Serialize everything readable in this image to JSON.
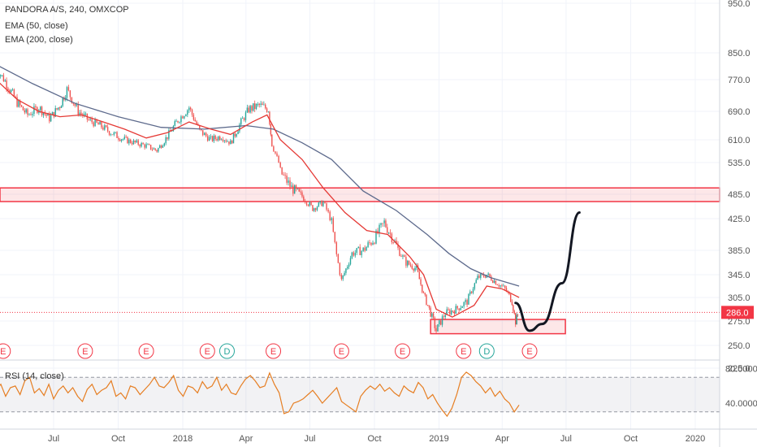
{
  "chart_data": {
    "type": "candlestick",
    "title": "PANDORA A/S, 240, OMXCOP",
    "indicators": [
      {
        "name": "EMA (50, close)",
        "color": "#e53935"
      },
      {
        "name": "EMA (200, close)",
        "color": "#5d6a8c"
      }
    ],
    "y_ticks": [
      "950.0",
      "850.0",
      "770.0",
      "690.0",
      "610.0",
      "535.0",
      "485.0",
      "425.0",
      "385.0",
      "345.0",
      "305.0",
      "275.0",
      "250.0",
      "225.0"
    ],
    "y_tick_values": [
      950,
      850,
      770,
      690,
      610,
      535,
      485,
      425,
      385,
      345,
      305,
      275,
      250,
      225
    ],
    "x_ticks": [
      "Jul",
      "Oct",
      "2018",
      "Apr",
      "Jul",
      "Oct",
      "2019",
      "Apr",
      "Jul",
      "Oct",
      "2020"
    ],
    "x_tick_dates": [
      "2017-07-01",
      "2017-10-01",
      "2018-01-01",
      "2018-04-01",
      "2018-07-01",
      "2018-10-01",
      "2019-01-01",
      "2019-04-01",
      "2019-07-01",
      "2019-10-01",
      "2020-01-01"
    ],
    "last_price": "286.0",
    "last_price_color": "#f23645",
    "up_color": "#26a69a",
    "down_color": "#ef5350",
    "price_path": [
      [
        "2017-04-10",
        805
      ],
      [
        "2017-04-25",
        760
      ],
      [
        "2017-05-10",
        712
      ],
      [
        "2017-05-25",
        680
      ],
      [
        "2017-06-10",
        700
      ],
      [
        "2017-06-25",
        670
      ],
      [
        "2017-07-10",
        705
      ],
      [
        "2017-07-20",
        745
      ],
      [
        "2017-08-05",
        690
      ],
      [
        "2017-08-20",
        665
      ],
      [
        "2017-09-05",
        650
      ],
      [
        "2017-09-25",
        625
      ],
      [
        "2017-10-10",
        610
      ],
      [
        "2017-10-25",
        600
      ],
      [
        "2017-11-10",
        590
      ],
      [
        "2017-11-25",
        575
      ],
      [
        "2017-12-10",
        620
      ],
      [
        "2017-12-25",
        665
      ],
      [
        "2018-01-10",
        700
      ],
      [
        "2018-01-25",
        635
      ],
      [
        "2018-02-10",
        610
      ],
      [
        "2018-02-25",
        620
      ],
      [
        "2018-03-10",
        600
      ],
      [
        "2018-03-25",
        660
      ],
      [
        "2018-04-05",
        695
      ],
      [
        "2018-04-20",
        705
      ],
      [
        "2018-05-03",
        695
      ],
      [
        "2018-05-08",
        595
      ],
      [
        "2018-05-20",
        520
      ],
      [
        "2018-06-05",
        495
      ],
      [
        "2018-06-20",
        480
      ],
      [
        "2018-07-05",
        450
      ],
      [
        "2018-07-20",
        465
      ],
      [
        "2018-08-01",
        420
      ],
      [
        "2018-08-15",
        335
      ],
      [
        "2018-08-30",
        380
      ],
      [
        "2018-09-15",
        385
      ],
      [
        "2018-10-01",
        400
      ],
      [
        "2018-10-15",
        420
      ],
      [
        "2018-10-30",
        395
      ],
      [
        "2018-11-15",
        365
      ],
      [
        "2018-11-30",
        355
      ],
      [
        "2018-12-10",
        310
      ],
      [
        "2018-12-20",
        285
      ],
      [
        "2018-12-28",
        265
      ],
      [
        "2019-01-10",
        285
      ],
      [
        "2019-01-25",
        290
      ],
      [
        "2019-02-10",
        300
      ],
      [
        "2019-02-25",
        340
      ],
      [
        "2019-03-10",
        345
      ],
      [
        "2019-03-25",
        330
      ],
      [
        "2019-04-05",
        320
      ],
      [
        "2019-04-15",
        300
      ],
      [
        "2019-04-20",
        275
      ],
      [
        "2019-04-25",
        286
      ]
    ],
    "ema50": [
      [
        "2017-04-10",
        770
      ],
      [
        "2017-05-10",
        720
      ],
      [
        "2017-06-10",
        690
      ],
      [
        "2017-07-10",
        675
      ],
      [
        "2017-08-10",
        680
      ],
      [
        "2017-09-10",
        660
      ],
      [
        "2017-10-10",
        640
      ],
      [
        "2017-11-10",
        615
      ],
      [
        "2017-12-10",
        630
      ],
      [
        "2018-01-10",
        660
      ],
      [
        "2018-02-10",
        640
      ],
      [
        "2018-03-10",
        625
      ],
      [
        "2018-04-10",
        660
      ],
      [
        "2018-05-01",
        680
      ],
      [
        "2018-05-20",
        610
      ],
      [
        "2018-06-20",
        545
      ],
      [
        "2018-07-20",
        495
      ],
      [
        "2018-08-20",
        440
      ],
      [
        "2018-09-20",
        410
      ],
      [
        "2018-10-20",
        405
      ],
      [
        "2018-11-20",
        375
      ],
      [
        "2018-12-10",
        345
      ],
      [
        "2018-12-28",
        290
      ],
      [
        "2019-01-20",
        280
      ],
      [
        "2019-02-20",
        295
      ],
      [
        "2019-03-10",
        325
      ],
      [
        "2019-04-01",
        320
      ],
      [
        "2019-04-25",
        305
      ]
    ],
    "ema200": [
      [
        "2017-04-10",
        815
      ],
      [
        "2017-06-01",
        760
      ],
      [
        "2017-08-01",
        710
      ],
      [
        "2017-10-01",
        675
      ],
      [
        "2017-12-01",
        645
      ],
      [
        "2018-02-01",
        640
      ],
      [
        "2018-04-01",
        650
      ],
      [
        "2018-05-10",
        640
      ],
      [
        "2018-06-20",
        600
      ],
      [
        "2018-08-01",
        545
      ],
      [
        "2018-09-15",
        490
      ],
      [
        "2018-11-01",
        445
      ],
      [
        "2018-12-15",
        405
      ],
      [
        "2019-01-15",
        380
      ],
      [
        "2019-02-15",
        355
      ],
      [
        "2019-03-15",
        340
      ],
      [
        "2019-04-25",
        325
      ]
    ],
    "resistance_zone": {
      "from": 467,
      "to": 495
    },
    "support_zone": {
      "from": 262,
      "to": 277,
      "start": "2018-12-20",
      "end": "2019-06-30"
    },
    "projection_curve": [
      [
        "2019-04-20",
        298
      ],
      [
        "2019-05-10",
        265
      ],
      [
        "2019-05-28",
        272
      ],
      [
        "2019-06-25",
        330
      ],
      [
        "2019-07-20",
        440
      ]
    ],
    "events": [
      {
        "date": "2017-04-20",
        "label": "E",
        "kind": "earnings"
      },
      {
        "date": "2017-08-15",
        "label": "E",
        "kind": "earnings"
      },
      {
        "date": "2017-11-10",
        "label": "E",
        "kind": "earnings"
      },
      {
        "date": "2018-02-05",
        "label": "E",
        "kind": "earnings"
      },
      {
        "date": "2018-03-05",
        "label": "D",
        "kind": "dividend"
      },
      {
        "date": "2018-05-10",
        "label": "E",
        "kind": "earnings"
      },
      {
        "date": "2018-08-15",
        "label": "E",
        "kind": "earnings"
      },
      {
        "date": "2018-11-10",
        "label": "E",
        "kind": "earnings"
      },
      {
        "date": "2019-02-05",
        "label": "E",
        "kind": "earnings"
      },
      {
        "date": "2019-03-10",
        "label": "D",
        "kind": "dividend"
      },
      {
        "date": "2019-05-10",
        "label": "E",
        "kind": "earnings"
      }
    ],
    "rsi": {
      "label": "RSI (14, close)",
      "color": "#e67e22",
      "ticks": [
        "80.0000",
        "40.0000"
      ],
      "tick_values": [
        80,
        40
      ],
      "band": [
        30,
        70
      ],
      "values": [
        55,
        62,
        48,
        58,
        60,
        50,
        66,
        70,
        52,
        57,
        49,
        62,
        45,
        55,
        60,
        52,
        58,
        48,
        42,
        56,
        62,
        50,
        55,
        58,
        66,
        48,
        52,
        45,
        60,
        58,
        50,
        56,
        62,
        70,
        60,
        58,
        64,
        72,
        55,
        48,
        60,
        58,
        52,
        65,
        57,
        60,
        70,
        55,
        62,
        52,
        50,
        60,
        68,
        72,
        66,
        58,
        60,
        75,
        62,
        52,
        28,
        30,
        40,
        42,
        45,
        50,
        55,
        48,
        40,
        46,
        52,
        58,
        42,
        38,
        34,
        30,
        48,
        55,
        60,
        56,
        62,
        54,
        58,
        52,
        48,
        60,
        55,
        52,
        64,
        58,
        45,
        50,
        40,
        32,
        25,
        34,
        50,
        70,
        76,
        72,
        65,
        60,
        52,
        58,
        48,
        54,
        45,
        40,
        30,
        38
      ]
    }
  }
}
